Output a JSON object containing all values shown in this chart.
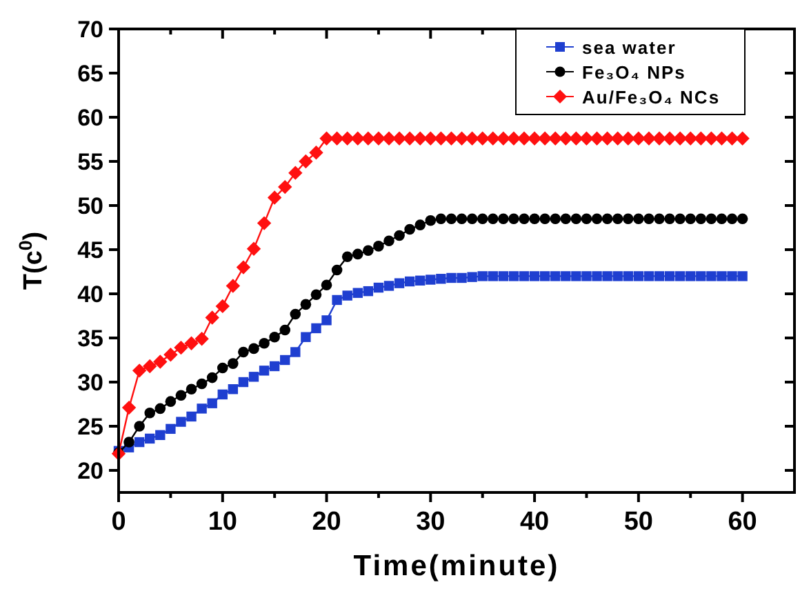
{
  "chart_data": {
    "type": "line",
    "xlabel": "Time(minute)",
    "ylabel": "T(c$^{0}$)",
    "x": [
      0,
      1,
      2,
      3,
      4,
      5,
      6,
      7,
      8,
      9,
      10,
      11,
      12,
      13,
      14,
      15,
      16,
      17,
      18,
      19,
      20,
      21,
      22,
      23,
      24,
      25,
      26,
      27,
      28,
      29,
      30,
      31,
      32,
      33,
      34,
      35,
      36,
      37,
      38,
      39,
      40,
      41,
      42,
      43,
      44,
      45,
      46,
      47,
      48,
      49,
      50,
      51,
      52,
      53,
      54,
      55,
      56,
      57,
      58,
      59,
      60
    ],
    "series": [
      {
        "name": "sea water",
        "color": "#1f3fd0",
        "marker": "square",
        "values": [
          22.2,
          22.6,
          23.2,
          23.6,
          24.0,
          24.7,
          25.5,
          26.1,
          27.0,
          27.6,
          28.6,
          29.2,
          30.0,
          30.6,
          31.3,
          31.8,
          32.5,
          33.4,
          35.1,
          36.1,
          37.0,
          39.3,
          39.8,
          40.1,
          40.3,
          40.7,
          40.9,
          41.2,
          41.4,
          41.5,
          41.6,
          41.7,
          41.8,
          41.8,
          41.9,
          42.0,
          42.0,
          42.0,
          42.0,
          42.0,
          42.0,
          42.0,
          42.0,
          42.0,
          42.0,
          42.0,
          42.0,
          42.0,
          42.0,
          42.0,
          42.0,
          42.0,
          42.0,
          42.0,
          42.0,
          42.0,
          42.0,
          42.0,
          42.0,
          42.0,
          42.0
        ]
      },
      {
        "name": "Fe₃O₄ NPs",
        "color": "#000000",
        "marker": "circle",
        "values": [
          22.0,
          23.2,
          25.0,
          26.5,
          27.0,
          27.8,
          28.5,
          29.2,
          29.8,
          30.5,
          31.6,
          32.1,
          33.4,
          33.8,
          34.4,
          35.1,
          35.9,
          37.7,
          38.8,
          39.9,
          41.0,
          42.7,
          44.2,
          44.5,
          44.9,
          45.4,
          46.0,
          46.6,
          47.3,
          47.8,
          48.3,
          48.5,
          48.5,
          48.5,
          48.5,
          48.5,
          48.5,
          48.5,
          48.5,
          48.5,
          48.5,
          48.5,
          48.5,
          48.5,
          48.5,
          48.5,
          48.5,
          48.5,
          48.5,
          48.5,
          48.5,
          48.5,
          48.5,
          48.5,
          48.5,
          48.5,
          48.5,
          48.5,
          48.5,
          48.5,
          48.5
        ]
      },
      {
        "name": "Au/Fe₃O₄  NCs",
        "color": "#ff1010",
        "marker": "diamond",
        "values": [
          21.9,
          27.1,
          31.3,
          31.8,
          32.3,
          33.1,
          33.9,
          34.4,
          34.9,
          37.3,
          38.6,
          40.9,
          43.0,
          45.1,
          48.0,
          50.9,
          52.1,
          53.7,
          55.0,
          56.0,
          57.6,
          57.6,
          57.6,
          57.6,
          57.6,
          57.6,
          57.6,
          57.6,
          57.6,
          57.6,
          57.6,
          57.6,
          57.6,
          57.6,
          57.6,
          57.6,
          57.6,
          57.6,
          57.6,
          57.6,
          57.6,
          57.6,
          57.6,
          57.6,
          57.6,
          57.6,
          57.6,
          57.6,
          57.6,
          57.6,
          57.6,
          57.6,
          57.6,
          57.6,
          57.6,
          57.6,
          57.6,
          57.6,
          57.6,
          57.6,
          57.6
        ]
      }
    ],
    "xlim": [
      0,
      65
    ],
    "xticks": [
      0,
      {
        "value": 5,
        "label": null
      },
      10,
      {
        "value": 15,
        "label": null
      },
      20,
      {
        "value": 25,
        "label": null
      },
      30,
      {
        "value": 35,
        "label": null
      },
      40,
      {
        "value": 45,
        "label": null
      },
      50,
      {
        "value": 55,
        "label": null
      },
      60
    ],
    "ylim": [
      17.5,
      70
    ],
    "yticks": [
      20,
      25,
      30,
      35,
      40,
      45,
      50,
      55,
      60,
      65,
      70
    ],
    "grid": false,
    "legend": "top right",
    "line_style": "solid"
  }
}
